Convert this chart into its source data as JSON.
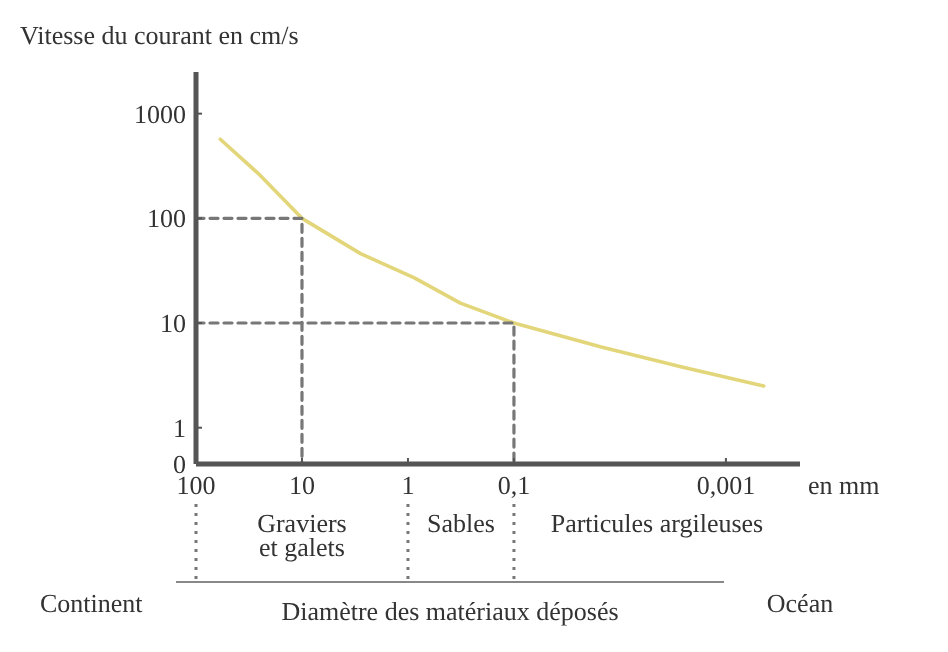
{
  "chart_data": {
    "type": "line",
    "ylabel": "Vitesse du courant en cm/s",
    "xlabel": "Diamètre des matériaux déposés",
    "log": "xy",
    "xlim": [
      100,
      0.0002
    ],
    "ylim": [
      0.45,
      2500
    ],
    "xticks": [
      100,
      10,
      1,
      {
        "value": 0.1,
        "label": "0,1"
      },
      {
        "value": 0.001,
        "label": "0,001"
      }
    ],
    "yticks": [
      {
        "value": 0.45,
        "label": "0"
      },
      1,
      10,
      100,
      1000
    ],
    "grid": false,
    "marker": "none",
    "series": [
      {
        "color": "#e3d67a",
        "x": [
          59,
          25,
          10,
          2.8,
          0.87,
          0.32,
          0.1,
          0.015,
          0.0026,
          0.00044
        ],
        "values": [
          570,
          260,
          100,
          46,
          27,
          15.5,
          10,
          5.9,
          3.8,
          2.5
        ]
      },
      {
        "color": "#777777",
        "line_style": "dashed",
        "x": [
          100,
          10,
          10
        ],
        "values": [
          100,
          100,
          0.45
        ]
      },
      {
        "color": "#777777",
        "line_style": "dashed",
        "x": [
          100,
          0.1,
          0.1
        ],
        "values": [
          10,
          10,
          0.45
        ]
      }
    ],
    "annotations": [
      "en mm",
      "Continent",
      "Océan",
      "Graviers\net galets",
      "Sables",
      "Particules argileuses"
    ]
  }
}
